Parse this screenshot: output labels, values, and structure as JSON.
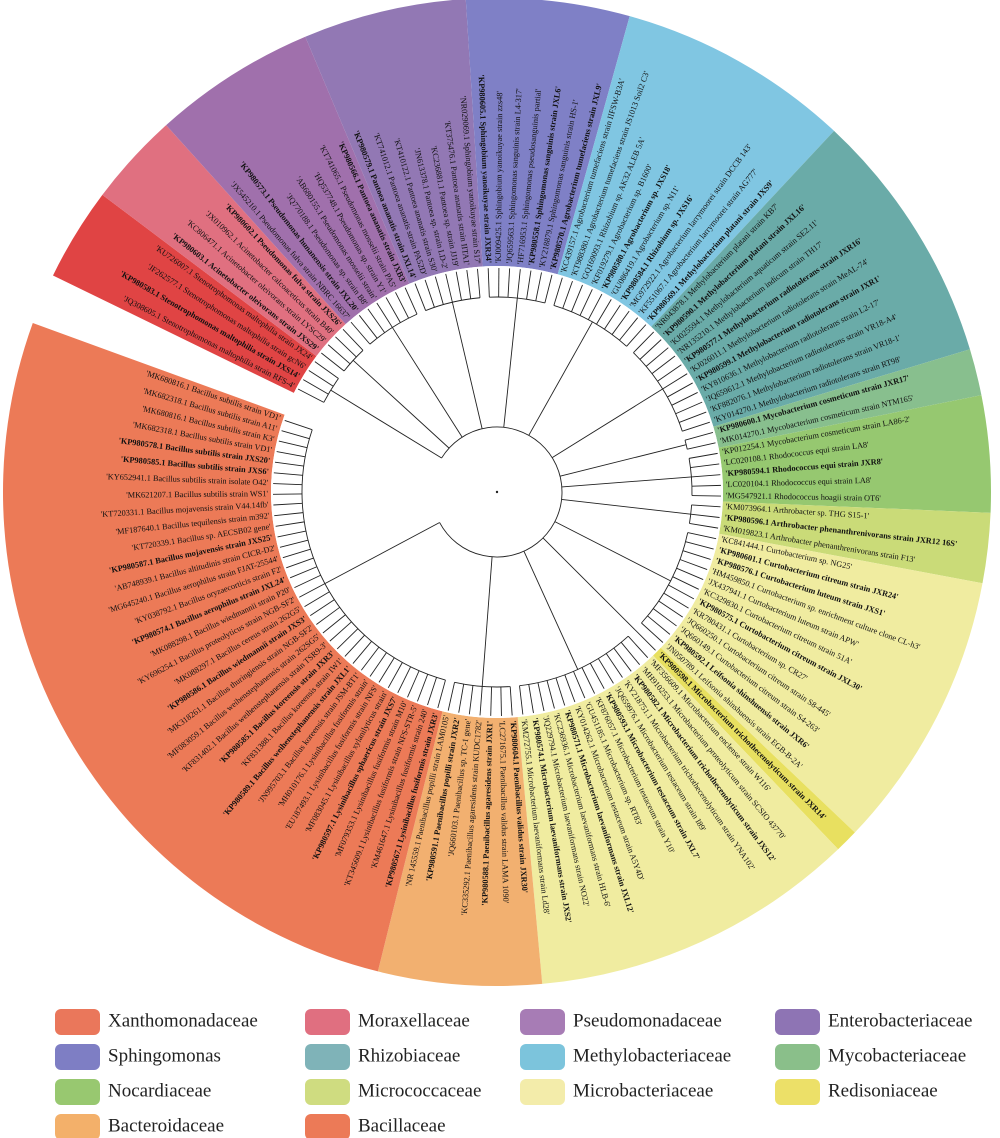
{
  "clades": [
    {
      "color": "#e04444",
      "leaves": [
        {
          "label": "'JQ308605.1 Stenotrophomonas maltophilia strain RFS-4'"
        },
        {
          "label": "'KP980583.1 Stenotrophomonas maltophilia strain JXS14'",
          "bold": true
        },
        {
          "label": "'JF262577.1 Stenotrophomonas maltophilia strain gcN6'"
        },
        {
          "label": "'KU726007.1 Stenotrophomonas maltophilia strain JX24'"
        }
      ]
    },
    {
      "color": "#e07080",
      "leaves": [
        {
          "label": "'KP980603.1 Acinetobacter oleivorans strain JXS29'",
          "bold": true
        },
        {
          "label": "'KC806471.1 Acinetobacter oleivorans strain LYSC29'"
        },
        {
          "label": "'JX010962.1 Acinetobacter calcoaceticus strain B40'"
        },
        {
          "label": "'KP980602.1 Pseudomonas fulva strain JXS26'",
          "bold": true
        }
      ]
    },
    {
      "color": "#a070ac",
      "leaves": [
        {
          "label": "'JX545210.1 Pseudomonas fulva strain NBRC 16637'"
        },
        {
          "label": "'KP980573.1 Pseudomonas hunanensis strain JXL20'",
          "bold": true
        },
        {
          "label": "'JQ770188.1 Pseudomonas sp. strain B8'"
        },
        {
          "label": "'AB680155.1 Pseudomonas mosselii strain'"
        },
        {
          "label": "'HQ537748.1 Pseudomonas sp. strain Y1'"
        },
        {
          "label": "'KT741065.1 Pseudomonas mosselii strain PA5'"
        },
        {
          "label": "'KP980566.1 Pantoea ananatis strain JXB3'",
          "bold": true
        }
      ]
    },
    {
      "color": "#9278b4",
      "leaves": [
        {
          "label": "'KP980579.1 Pantoea ananatis strain JXL14'",
          "bold": true
        },
        {
          "label": "'KT741012.1 Pantoea ananatis strain PA52D'"
        },
        {
          "label": "'KT410122.1 Pantoea ananatis strain S30'"
        },
        {
          "label": "'JN613378.1 Pantoea sp. strain LD-2'"
        },
        {
          "label": "'KC236881.1 Pantoea sp. strain JJ19'"
        },
        {
          "label": "'KT375476.1 Pantoea ananatis strain IITA1'"
        },
        {
          "label": "'NR029069.1 Sphingobium yanoikuyae strain S17'"
        }
      ]
    },
    {
      "color": "#7f80c6",
      "leaves": [
        {
          "label": "'KP980605.1 Sphingobium yanoikuyae strain JXR34'",
          "bold": true
        },
        {
          "label": "'KJ009425.1 Sphingobium yanoikuyae strain zzs48'"
        },
        {
          "label": "'JQ659563.1 Sphingomonas sanguinis strain L4-317'"
        },
        {
          "label": "'HF716953.1 Sphingomonas pseudosanguinis partial'"
        },
        {
          "label": "'KP980558.1 Sphingomonas sanguinis strain JXL6'",
          "bold": true
        },
        {
          "label": "'KY218879.1 Sphingomonas sanguinis strain HS-1'"
        },
        {
          "label": "'KP980570.1 Agrobacterium tumefaciens strain JXL9'",
          "bold": true
        }
      ]
    },
    {
      "color": "#80c6e2",
      "leaves": [
        {
          "label": "'KC439157.1 Agrobacterium tumefaciens strain IIFSW-B3A'"
        },
        {
          "label": "'KT988380.1 Agrobacterium tumefaciens strain JS1013 Soil2 C3'"
        },
        {
          "label": "'GQ169093.1 Rhizobium sp. AK32 ALEB 5A'"
        },
        {
          "label": "'KF019279.1 Agrobacterium sp. B1600'"
        },
        {
          "label": "'KP980580.1 Agrobacterium sp. JXS18'",
          "bold": true
        },
        {
          "label": "'GU086419.1 Agrobacterium sp. N11'"
        },
        {
          "label": "'KP980584.1 Rhizobium sp. JXS16'",
          "bold": true
        },
        {
          "label": "'MG972922.1 Agrobacterium larrymoorei strain DCCB 143'"
        },
        {
          "label": "'KF551067.1 Agrobacterium larrymoorei strain AG777'"
        },
        {
          "label": "'KP980569.1 Methylobacterium platani strain JXS9'",
          "bold": true
        }
      ]
    },
    {
      "color": "#6aaba8",
      "leaves": [
        {
          "label": "'NR043878.1 Methylobacterium platani strain KB7'"
        },
        {
          "label": "'KP980590.1 Methylobacterium platani strain JXL16'",
          "bold": true
        },
        {
          "label": "'KJ025594.1 Methylobacterium aquaticum strain SE2.11'"
        },
        {
          "label": "'NR135210.1 Methylobacterium indicum strain TH17'"
        },
        {
          "label": "'KP980577.1 Methylobacterium radiotolerans strain JXR16'",
          "bold": true
        },
        {
          "label": "'KJ026011.1 Methylobacterium radiotolerans strain MeAL-74'"
        },
        {
          "label": "'KP980599.1 Methylobacterium radiotolerans strain JXR1'",
          "bold": true
        },
        {
          "label": "'KY810636.1 Methylobacterium radiotolerans strain L2-17'"
        },
        {
          "label": "'JQ659612.1 Methylobacterium radiotolerans strain VR18-A4'"
        },
        {
          "label": "'KF882076.1 Methylobacterium radiotolerans strain VR18-1'"
        },
        {
          "label": "'KY014270.1 Methylobacterium radiotolerans strain RT98'"
        }
      ]
    },
    {
      "color": "#88bf8e",
      "leaves": [
        {
          "label": "'KP980600.1 Mycobacterium cosmeticum strain JXR17'",
          "bold": true
        },
        {
          "label": "'MK014270.1 Mycobacterium cosmeticum strain NTM165'"
        }
      ]
    },
    {
      "color": "#96c870",
      "leaves": [
        {
          "label": "'KP012254.1 Mycobacterium cosmeticum strain LA86-2'"
        },
        {
          "label": "'LC020108.1 Rhodococcus equi strain LA8'"
        },
        {
          "label": "'KP980594.1 Rhodococcus equi strain JXR8'",
          "bold": true
        },
        {
          "label": "'LC020104.1 Rhodococcus equi strain LA8'"
        },
        {
          "label": "'MG547921.1 Rhodococcus hoagii strain OT6'"
        }
      ]
    },
    {
      "color": "#cadb78",
      "leaves": [
        {
          "label": "'KM073964.1 Arthrobacter sp. THG S15-1'"
        },
        {
          "label": "'KP980596.1 Arthrobacter phenanthrenivorans strain JXR12 16S'",
          "bold": true
        },
        {
          "label": "'KM019823.1 Arthrobacter phenanthrenivorans strain F13'"
        }
      ]
    },
    {
      "color": "#f0eca0",
      "leaves": [
        {
          "label": "'KC841444.1 Curtobacterium sp. NG25'"
        },
        {
          "label": "'KP980601.1 Curtobacterium citreum strain JXR24'",
          "bold": true
        },
        {
          "label": "'KP980576.1 Curtobacterium luteum strain JXS1'",
          "bold": true
        },
        {
          "label": "'HM459850.1 Curtobacterium sp. enrichment culture clone CL-h3'"
        },
        {
          "label": "'JX437941.1 Curtobacterium luteum strain APW'"
        },
        {
          "label": "'KC329830.1 Curtobacterium citreum strain 51A'"
        },
        {
          "label": "'KP980575.1 Curtobacterium citreum strain JXL30'",
          "bold": true
        },
        {
          "label": "'KR780431.1 Curtobacterium sp. CR27'"
        },
        {
          "label": "'JQ660250.1 Curtobacterium citreum strain S8-445'"
        },
        {
          "label": "'JQ660149.1 Curtobacterium citreum strain S4-263'"
        },
        {
          "label": "'KP980592.1 Leifsonia shinshuensis strain JXR6'",
          "bold": true
        },
        {
          "label": "'JN050789.1 Leifsonia shinshuensis strain EGB-B-2A'"
        }
      ]
    },
    {
      "color": "#e8e060",
      "leaves": [
        {
          "label": "'KP980598.1 Microbacterium trichothecenolyticum strain JXR14'",
          "bold": true
        }
      ]
    },
    {
      "color": "#f0eca0",
      "leaves": [
        {
          "label": "'MF356609.1 Microbacterium enclense strain W116'"
        },
        {
          "label": "'MH910253.1 Microbacterium proteolyticum strain SCSIO 43770'"
        },
        {
          "label": "'KP980582.1 Microbacterium trichothecenolyticum strain JXS12'",
          "bold": true
        },
        {
          "label": "'KY218751.1 Microbacterium trichothecenolyticum strain YNA102'"
        },
        {
          "label": "'JQ659976.1 Microbacterium testaceum strain I89'"
        },
        {
          "label": "'KP980593.1 Microbacterium testaceum strain JXL7'",
          "bold": true
        },
        {
          "label": "'KF876057.1 Microbacterium testaceum strain Y10'"
        },
        {
          "label": "'GU451185.1 Microbacterium sp. RT83'"
        },
        {
          "label": "'KY014262.1 Microbacterium testaceum strain A5Y4D'"
        },
        {
          "label": "'KP980571.1 Microbacterium laevaniformans strain JXL12'",
          "bold": true
        },
        {
          "label": "'KC236936.1 Microbacterium laevaniformans strain HLB-6'"
        },
        {
          "label": "'JQ229794.1 Microbacterium laevaniformans strain NO22'"
        },
        {
          "label": "'KP980574.1 Microbacterium laevaniformans strain JXS2'",
          "bold": true
        },
        {
          "label": "'KM272755.1 Microbacterium laevaniformans strain Ld28'"
        }
      ]
    },
    {
      "color": "#f2b070",
      "leaves": [
        {
          "label": "'KP980604.1 Paenibacillus validus strain JXR30'",
          "bold": true
        },
        {
          "label": "'LC271675.1 Paenibacillus validus strain LAMA 1090'"
        },
        {
          "label": "'KP980588.1 Paenibacillus agaresidens strain JXR1'",
          "bold": true
        },
        {
          "label": "'KC335292.1 Paenibacillus agaresidens strain KUDC1782'"
        },
        {
          "label": "'JQ660103.1 Paenibacillus sp. TC-1 gene'"
        },
        {
          "label": "'KP980591.1 Paenibacillus popilli strain JXR2'",
          "bold": true
        },
        {
          "label": "'NR 145559.1 Paenibacillus popilli strain LAM0105'"
        }
      ]
    },
    {
      "color": "#ec7a57",
      "leaves": [
        {
          "label": "'KP980567.1 Lysinibacillus fusiformis strain JXR3'",
          "bold": true
        },
        {
          "label": "'KM461647.1 Lysinibacillus fusiformis strain 240'"
        },
        {
          "label": "'KT345609.1 Lysinibacillus fusiformis strain NFS-STR-5'"
        },
        {
          "label": "'MF079353.1 Lysinibacillus fusiformis strain M10'"
        },
        {
          "label": "'KP980597.1 Lysinibacillus sphaericus strain JXS7'",
          "bold": true
        },
        {
          "label": "'MF083045.1 Lysinibacillus xylanilyticus strain'"
        },
        {
          "label": "'EU187493.1 Lysinibacillus fusiformis strain NFS'"
        },
        {
          "label": "'MH010176.1 Lysinibacillus fusiformis strain'"
        },
        {
          "label": "'JN995703.1 Bacillus koreensis strain JSM-BT1'"
        },
        {
          "label": "'KP980589.1 Bacillus weihenstephanensis strain JXL1'",
          "bold": true
        },
        {
          "label": "'KF831388.1 Bacillus koreensis strain IW1'"
        },
        {
          "label": "'KP980585.1 Bacillus koreensis strain JXR3'",
          "bold": true
        },
        {
          "label": "'KF831402.1 Bacillus weihenstephanensis strain TSR9-3'"
        },
        {
          "label": "'MF083059.1 Bacillus weihenstephanensis strain 262SG5'"
        },
        {
          "label": "'MK318261.1 Bacillus thuringiensis strain NGB-SF2'"
        },
        {
          "label": "'KP980586.1 Bacillus wiedmannii strain JXS3'",
          "bold": true
        },
        {
          "label": "'MK088297.1 Bacillus cereus strain 262G5'"
        },
        {
          "label": "'KY696254.1 Bacillus proteolyticus strain NGB-SF2'"
        },
        {
          "label": "'MK088298.1 Bacillus wiedmannii strain P20'"
        },
        {
          "label": "'KP980574.1 Bacillus aerophilus strain JXL24'",
          "bold": true
        },
        {
          "label": "'KY038792.1 Bacillus oryzaecorticis strain F2'"
        },
        {
          "label": "'MG645240.1 Bacillus aerophilus strain FJAT-25544'"
        },
        {
          "label": "'AB748939.1 Bacillus altitudinis strain CICR-D2'"
        },
        {
          "label": "'KP980587.1 Bacillus mojavensis strain JXS25'",
          "bold": true
        },
        {
          "label": "'KT720339.1 Bacillus sp. AECSB02 gene'"
        },
        {
          "label": "'MF187640.1 Bacillus tequilensis strain m392'"
        },
        {
          "label": "'KT720331.1 Bacillus mojavensis strain V44.14fb'"
        },
        {
          "label": "'MK621207.1 Bacillus subtilis strain WS1'"
        },
        {
          "label": "'KY652941.1 Bacillus subtilis strain isolate O42'"
        },
        {
          "label": "'KP980585.1 Bacillus subtilis strain JXS6'",
          "bold": true
        },
        {
          "label": "'KP980578.1 Bacillus subtilis strain JXS20'",
          "bold": true
        },
        {
          "label": "'MK682318.1 Bacillus subtilis strain VD1'"
        },
        {
          "label": "'MK680816.1 Bacillus subtilis strain K3'"
        },
        {
          "label": "'MK682318.1 Bacillus subtilis strain A11'"
        },
        {
          "label": "'MK680816.1 Bacillus subtilis strain VD1'"
        }
      ]
    }
  ],
  "legend": [
    {
      "label": "Xanthomonadaceae",
      "color": "#ea775b"
    },
    {
      "label": "Moraxellaceae",
      "color": "#e06f80"
    },
    {
      "label": "Pseudomonadaceae",
      "color": "#a77cb5"
    },
    {
      "label": "Enterobacteriaceae",
      "color": "#8e74b4"
    },
    {
      "label": "Sphingomonas",
      "color": "#7e7ec4"
    },
    {
      "label": "Rhizobiaceae",
      "color": "#7fb3b8"
    },
    {
      "label": "Methylobacteriaceae",
      "color": "#7cc4dc"
    },
    {
      "label": "Mycobacteriaceae",
      "color": "#8abf8a"
    },
    {
      "label": "Nocardiaceae",
      "color": "#98c870"
    },
    {
      "label": "Micrococcaceae",
      "color": "#cfdc80"
    },
    {
      "label": "Microbacteriaceae",
      "color": "#f3ecaa"
    },
    {
      "label": "Redisoniaceae",
      "color": "#ece068"
    },
    {
      "label": "Bacteroidaceae",
      "color": "#f3b06a"
    },
    {
      "label": "Bacillaceae",
      "color": "#ec7a57"
    }
  ]
}
